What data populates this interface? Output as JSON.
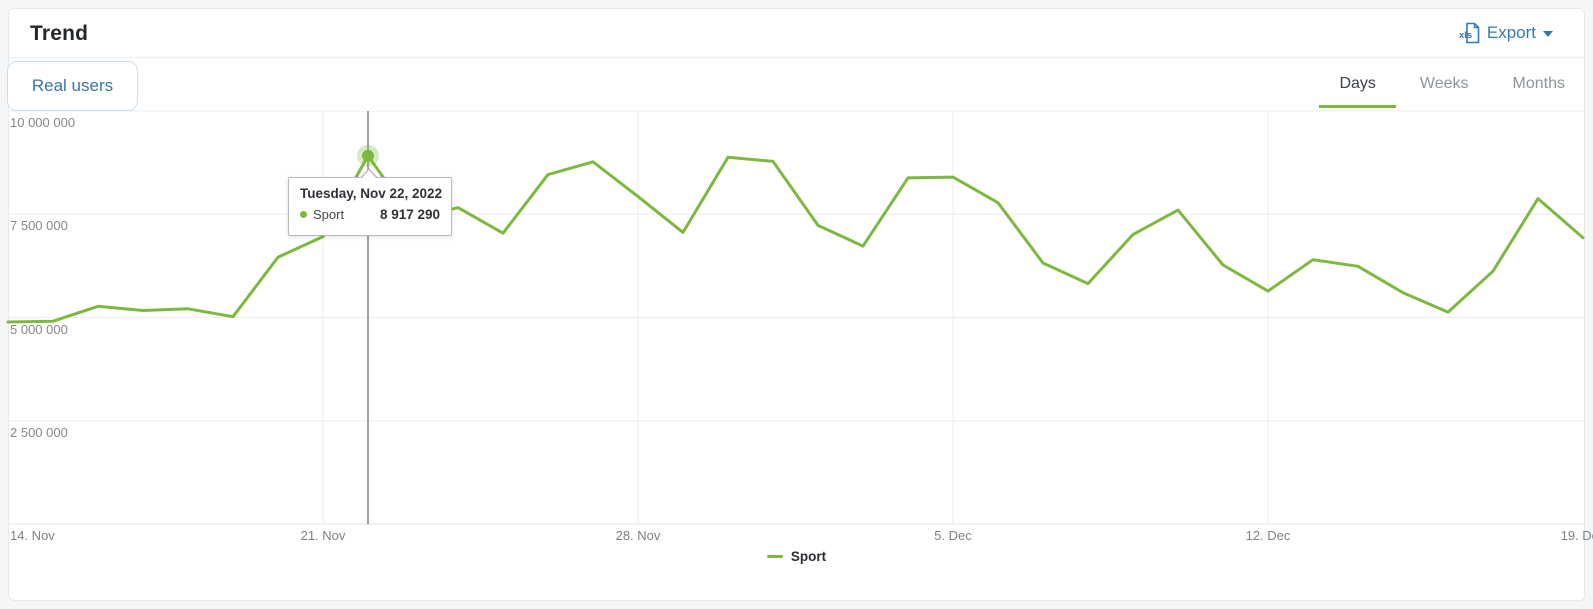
{
  "header": {
    "title": "Trend",
    "export_label": "Export",
    "export_icon": "xls-file-icon"
  },
  "filters": {
    "metric_tab": "Real users",
    "granularity_tabs": [
      "Days",
      "Weeks",
      "Months"
    ],
    "active_granularity": "Days"
  },
  "colors": {
    "series_green": "#7cb93e",
    "link_blue": "#3379b7",
    "crosshair": "#5b6670",
    "gridline": "#ededef",
    "axis_baseline": "#e2e4e6"
  },
  "chart_data": {
    "type": "line",
    "title": "Trend",
    "xlabel": "",
    "ylabel": "Real users",
    "ylim": [
      0,
      10000000
    ],
    "grid": true,
    "legend_position": "bottom",
    "categories": [
      "2022-11-14",
      "2022-11-15",
      "2022-11-16",
      "2022-11-17",
      "2022-11-18",
      "2022-11-19",
      "2022-11-20",
      "2022-11-21",
      "2022-11-22",
      "2022-11-23",
      "2022-11-24",
      "2022-11-25",
      "2022-11-26",
      "2022-11-27",
      "2022-11-28",
      "2022-11-29",
      "2022-11-30",
      "2022-12-01",
      "2022-12-02",
      "2022-12-03",
      "2022-12-04",
      "2022-12-05",
      "2022-12-06",
      "2022-12-07",
      "2022-12-08",
      "2022-12-09",
      "2022-12-10",
      "2022-12-11",
      "2022-12-12",
      "2022-12-13",
      "2022-12-14",
      "2022-12-15",
      "2022-12-16",
      "2022-12-17",
      "2022-12-18",
      "2022-12-19"
    ],
    "series": [
      {
        "name": "Sport",
        "color": "#7cb93e",
        "values": [
          4890000,
          4910000,
          5270000,
          5170000,
          5210000,
          5020000,
          6460000,
          6960000,
          8917290,
          7370000,
          7660000,
          7040000,
          8460000,
          8770000,
          7930000,
          7060000,
          8880000,
          8780000,
          7230000,
          6730000,
          8380000,
          8400000,
          7780000,
          6320000,
          5820000,
          7010000,
          7600000,
          6270000,
          5640000,
          6400000,
          6240000,
          5600000,
          5130000,
          6120000,
          7880000,
          6930000
        ]
      }
    ],
    "y_tick_labels": [
      "10 000 000",
      "7 500 000",
      "5 000 000",
      "2 500 000"
    ],
    "x_tick_labels": [
      "14. Nov",
      "21. Nov",
      "28. Nov",
      "5. Dec",
      "12. Dec",
      "19. Dec"
    ],
    "highlight": {
      "index": 8,
      "date_label": "Tuesday, Nov 22, 2022",
      "series": "Sport",
      "value": 8917290,
      "value_label": "8 917 290"
    },
    "legend": [
      {
        "label": "Sport",
        "color": "#7cb93e"
      }
    ]
  }
}
